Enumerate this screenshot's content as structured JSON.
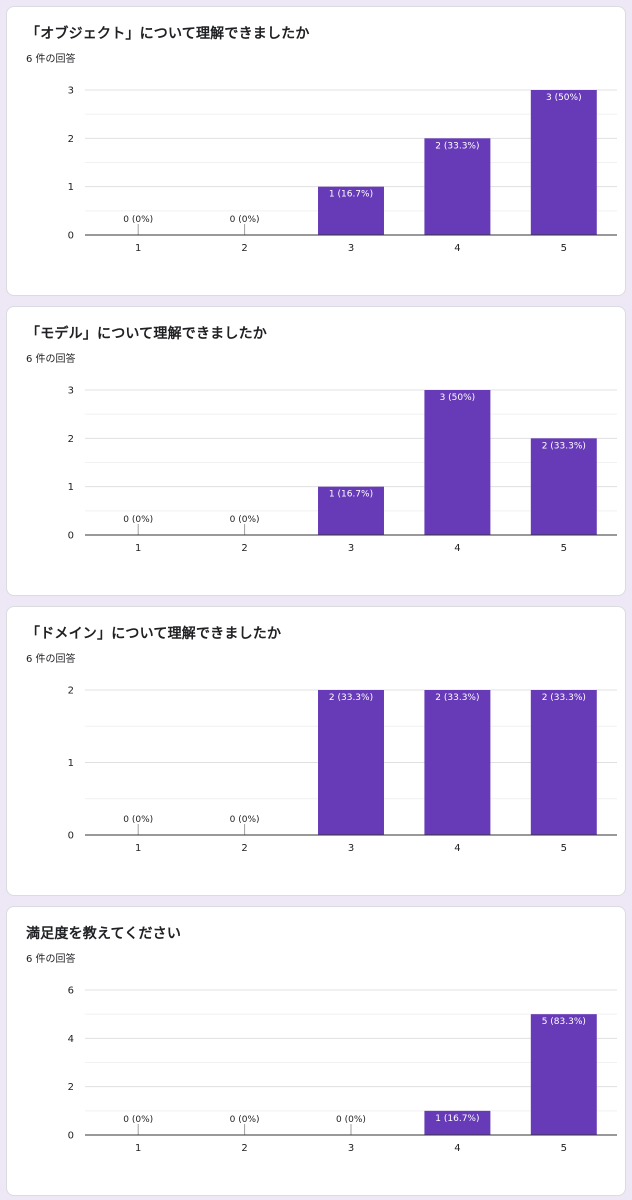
{
  "accent_color": "#673ab7",
  "charts": [
    {
      "title": "「オブジェクト」について理解できましたか",
      "responses": "6 件の回答"
    },
    {
      "title": "「モデル」について理解できましたか",
      "responses": "6 件の回答"
    },
    {
      "title": "「ドメイン」について理解できましたか",
      "responses": "6 件の回答"
    },
    {
      "title": "満足度を教えてください",
      "responses": "6 件の回答"
    }
  ],
  "chart_data": [
    {
      "type": "bar",
      "title": "「オブジェクト」について理解できましたか",
      "categories": [
        "1",
        "2",
        "3",
        "4",
        "5"
      ],
      "values": [
        0,
        0,
        1,
        2,
        3
      ],
      "data_labels": [
        "0 (0%)",
        "0 (0%)",
        "1 (16.7%)",
        "2 (33.3%)",
        "3 (50%)"
      ],
      "ylim": [
        0,
        3
      ],
      "yticks": [
        "0",
        "1",
        "2",
        "3"
      ],
      "grid": true
    },
    {
      "type": "bar",
      "title": "「モデル」について理解できましたか",
      "categories": [
        "1",
        "2",
        "3",
        "4",
        "5"
      ],
      "values": [
        0,
        0,
        1,
        3,
        2
      ],
      "data_labels": [
        "0 (0%)",
        "0 (0%)",
        "1 (16.7%)",
        "3 (50%)",
        "2 (33.3%)"
      ],
      "ylim": [
        0,
        3
      ],
      "yticks": [
        "0",
        "1",
        "2",
        "3"
      ],
      "grid": true
    },
    {
      "type": "bar",
      "title": "「ドメイン」について理解できましたか",
      "categories": [
        "1",
        "2",
        "3",
        "4",
        "5"
      ],
      "values": [
        0,
        0,
        2,
        2,
        2
      ],
      "data_labels": [
        "0 (0%)",
        "0 (0%)",
        "2 (33.3%)",
        "2 (33.3%)",
        "2 (33.3%)"
      ],
      "ylim": [
        0,
        2
      ],
      "yticks": [
        "0",
        "1",
        "2"
      ],
      "grid": true
    },
    {
      "type": "bar",
      "title": "満足度を教えてください",
      "categories": [
        "1",
        "2",
        "3",
        "4",
        "5"
      ],
      "values": [
        0,
        0,
        0,
        1,
        5
      ],
      "data_labels": [
        "0 (0%)",
        "0 (0%)",
        "0 (0%)",
        "1 (16.7%)",
        "5 (83.3%)"
      ],
      "ylim": [
        0,
        6
      ],
      "yticks": [
        "0",
        "2",
        "4",
        "6"
      ],
      "grid": true
    }
  ]
}
